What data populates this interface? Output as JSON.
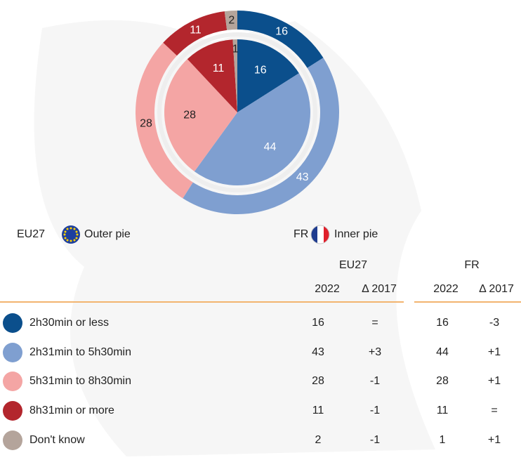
{
  "chart_data": {
    "type": "pie",
    "categories": [
      "2h30min or less",
      "2h31min to 5h30min",
      "5h31min to 8h30min",
      "8h31min or more",
      "Don't know"
    ],
    "colors": [
      "#0b4f8c",
      "#7f9fd0",
      "#f4a5a4",
      "#b3262d",
      "#b4a49b"
    ],
    "series": [
      {
        "name": "EU27",
        "ring": "Outer pie",
        "values": [
          16,
          43,
          28,
          11,
          2
        ]
      },
      {
        "name": "FR",
        "ring": "Inner pie",
        "values": [
          16,
          44,
          28,
          11,
          1
        ]
      }
    ]
  },
  "table": {
    "columns": [
      "2022",
      "Δ 2017"
    ],
    "changes": [
      [
        "=",
        "-3"
      ],
      [
        "+3",
        "+1"
      ],
      [
        "-1",
        "+1"
      ],
      [
        "-1",
        "="
      ],
      [
        "-1",
        "+1"
      ]
    ]
  }
}
